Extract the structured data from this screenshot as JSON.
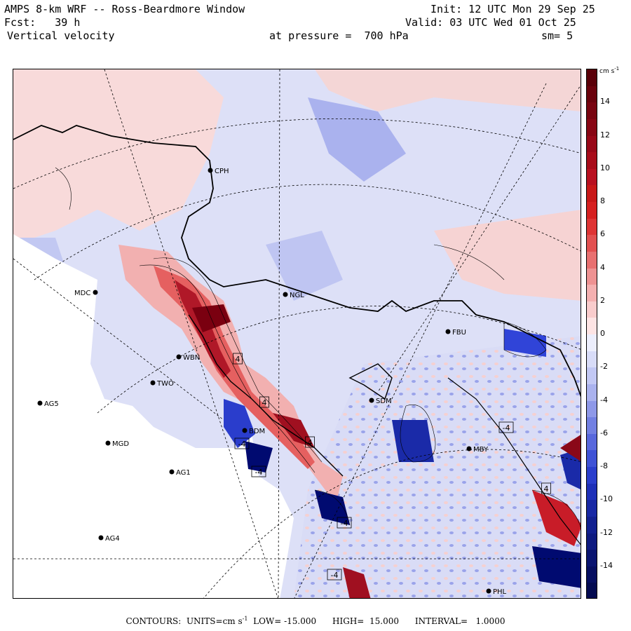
{
  "header": {
    "title": "AMPS 8-km WRF -- Ross-Beardmore Window",
    "fcst_label": "Fcst:",
    "fcst_value": "39 h",
    "field": "Vertical velocity",
    "init": "Init: 12 UTC Mon 29 Sep 25",
    "valid": "Valid: 03 UTC Wed 01 Oct 25",
    "pressure": "at pressure =  700 hPa",
    "smoothing": "sm= 5"
  },
  "colorbar": {
    "units": "cm s",
    "units_sup": "-1",
    "ticks": [
      "14",
      "12",
      "10",
      "8",
      "6",
      "4",
      "2",
      "0",
      "-2",
      "-4",
      "-6",
      "-8",
      "-10",
      "-12",
      "-14"
    ],
    "levels": [
      16,
      -16
    ],
    "colors": {
      "pos_strong": "#7a0010",
      "pos_mid": "#e02020",
      "pos_weak": "#f6c6c6",
      "neutral": "#ffffff",
      "neg_weak": "#c8ccf2",
      "neg_mid": "#2040e0",
      "neg_strong": "#000a70"
    }
  },
  "stations": [
    {
      "name": "CPH"
    },
    {
      "name": "MDC"
    },
    {
      "name": "NGL"
    },
    {
      "name": "FBU"
    },
    {
      "name": "WBN"
    },
    {
      "name": "TWO"
    },
    {
      "name": "AG5"
    },
    {
      "name": "SDM"
    },
    {
      "name": "MGD"
    },
    {
      "name": "BDM"
    },
    {
      "name": "AG1"
    },
    {
      "name": "MBY"
    },
    {
      "name": "AG4"
    },
    {
      "name": "PHL"
    }
  ],
  "contour_labels": [
    "4",
    "4",
    "4",
    "-4",
    "-4",
    "-4",
    "-4",
    "4",
    "-4"
  ],
  "footer": {
    "contours_label": "CONTOURS:",
    "units_label": "UNITS=cm s",
    "units_sup": "-1",
    "low": "LOW= -15.000",
    "high": "HIGH=  15.000",
    "interval": "INTERVAL=   1.0000"
  }
}
